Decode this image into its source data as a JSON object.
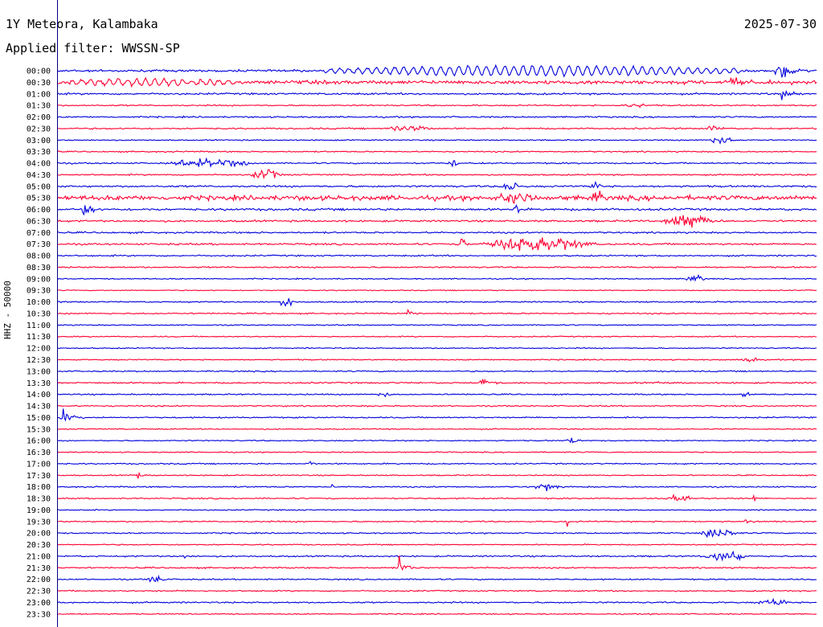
{
  "header": {
    "station": "1Y Meteora, Kalambaka",
    "date": "2025-07-30",
    "filter": "Applied filter: WWSSN-SP"
  },
  "colors": {
    "trace_a": "#0000dd",
    "trace_b": "#ff0033",
    "axis": "#000080"
  },
  "chart_data": {
    "type": "line",
    "title": "1Y Meteora, Kalambaka",
    "ylabel": "HHZ - 50000",
    "xlabel": "",
    "grid": false,
    "legend": "none",
    "trace_colors_alternate": [
      "#0000dd",
      "#ff0033"
    ],
    "row_labels": [
      "00:00",
      "00:30",
      "01:00",
      "01:30",
      "02:00",
      "02:30",
      "03:00",
      "03:30",
      "04:00",
      "04:30",
      "05:00",
      "05:30",
      "06:00",
      "06:30",
      "07:00",
      "07:30",
      "08:00",
      "08:30",
      "09:00",
      "09:30",
      "10:00",
      "10:30",
      "11:00",
      "11:30",
      "12:00",
      "12:30",
      "13:00",
      "13:30",
      "14:00",
      "14:30",
      "15:00",
      "15:30",
      "16:00",
      "16:30",
      "17:00",
      "17:30",
      "18:00",
      "18:30",
      "19:00",
      "19:30",
      "20:00",
      "20:30",
      "21:00",
      "21:30",
      "22:00",
      "22:30",
      "23:00",
      "23:30"
    ],
    "row_noise": [
      1.2,
      2.0,
      1.0,
      0.7,
      0.8,
      0.8,
      0.6,
      0.7,
      0.8,
      0.8,
      1.0,
      2.6,
      1.2,
      1.0,
      0.9,
      1.0,
      0.8,
      0.8,
      0.6,
      0.5,
      0.7,
      0.7,
      0.6,
      0.6,
      0.6,
      0.6,
      0.7,
      0.8,
      0.7,
      0.7,
      0.7,
      0.6,
      0.6,
      0.6,
      0.7,
      0.6,
      0.7,
      0.7,
      0.6,
      0.7,
      0.7,
      0.6,
      0.8,
      0.8,
      0.7,
      0.7,
      0.8,
      0.6
    ],
    "events": [
      {
        "row": 0,
        "start": 0.35,
        "dur": 0.55,
        "amp": 6,
        "kind": "swell"
      },
      {
        "row": 0,
        "start": 0.945,
        "dur": 0.055,
        "amp": 18,
        "kind": "quake"
      },
      {
        "row": 1,
        "start": 0.0,
        "dur": 0.25,
        "amp": 4,
        "kind": "swell"
      },
      {
        "row": 1,
        "start": 0.86,
        "dur": 0.06,
        "amp": 3,
        "kind": "burst"
      },
      {
        "row": 2,
        "start": 0.953,
        "dur": 0.047,
        "amp": 10,
        "kind": "quake"
      },
      {
        "row": 3,
        "start": 0.74,
        "dur": 0.04,
        "amp": 2,
        "kind": "burst"
      },
      {
        "row": 5,
        "start": 0.43,
        "dur": 0.07,
        "amp": 3,
        "kind": "burst"
      },
      {
        "row": 5,
        "start": 0.85,
        "dur": 0.03,
        "amp": 2,
        "kind": "burst"
      },
      {
        "row": 6,
        "start": 0.855,
        "dur": 0.04,
        "amp": 3,
        "kind": "burst"
      },
      {
        "row": 8,
        "start": 0.14,
        "dur": 0.12,
        "amp": 4,
        "kind": "burst"
      },
      {
        "row": 8,
        "start": 0.515,
        "dur": 0.03,
        "amp": 9,
        "kind": "quake"
      },
      {
        "row": 9,
        "start": 0.25,
        "dur": 0.05,
        "amp": 4,
        "kind": "burst"
      },
      {
        "row": 10,
        "start": 0.58,
        "dur": 0.03,
        "amp": 5,
        "kind": "burst"
      },
      {
        "row": 10,
        "start": 0.7,
        "dur": 0.02,
        "amp": 4,
        "kind": "burst"
      },
      {
        "row": 11,
        "start": 0.58,
        "dur": 0.05,
        "amp": 6,
        "kind": "burst"
      },
      {
        "row": 11,
        "start": 0.7,
        "dur": 0.02,
        "amp": 6,
        "kind": "burst"
      },
      {
        "row": 12,
        "start": 0.03,
        "dur": 0.02,
        "amp": 6,
        "kind": "burst"
      },
      {
        "row": 12,
        "start": 0.6,
        "dur": 0.01,
        "amp": 8,
        "kind": "spike"
      },
      {
        "row": 13,
        "start": 0.79,
        "dur": 0.09,
        "amp": 5,
        "kind": "burst"
      },
      {
        "row": 15,
        "start": 0.53,
        "dur": 0.015,
        "amp": 28,
        "kind": "quake"
      },
      {
        "row": 15,
        "start": 0.545,
        "dur": 0.17,
        "amp": 6,
        "kind": "burst"
      },
      {
        "row": 18,
        "start": 0.825,
        "dur": 0.03,
        "amp": 3,
        "kind": "burst"
      },
      {
        "row": 20,
        "start": 0.29,
        "dur": 0.025,
        "amp": 4,
        "kind": "burst"
      },
      {
        "row": 21,
        "start": 0.46,
        "dur": 0.03,
        "amp": 5,
        "kind": "quake"
      },
      {
        "row": 25,
        "start": 0.9,
        "dur": 0.025,
        "amp": 3,
        "kind": "burst"
      },
      {
        "row": 27,
        "start": 0.555,
        "dur": 0.04,
        "amp": 10,
        "kind": "quake"
      },
      {
        "row": 27,
        "start": 0.79,
        "dur": 0.01,
        "amp": 5,
        "kind": "quake"
      },
      {
        "row": 28,
        "start": 0.42,
        "dur": 0.02,
        "amp": 2,
        "kind": "burst"
      },
      {
        "row": 28,
        "start": 0.895,
        "dur": 0.02,
        "amp": 2,
        "kind": "burst"
      },
      {
        "row": 30,
        "start": 0.002,
        "dur": 0.05,
        "amp": 9,
        "kind": "quake"
      },
      {
        "row": 32,
        "start": 0.67,
        "dur": 0.02,
        "amp": 3,
        "kind": "burst"
      },
      {
        "row": 34,
        "start": 0.33,
        "dur": 0.03,
        "amp": 4,
        "kind": "quake"
      },
      {
        "row": 35,
        "start": 0.095,
        "dur": 0.02,
        "amp": 2,
        "kind": "burst"
      },
      {
        "row": 36,
        "start": 0.625,
        "dur": 0.04,
        "amp": 3,
        "kind": "burst"
      },
      {
        "row": 36,
        "start": 0.36,
        "dur": 0.003,
        "amp": 5,
        "kind": "spike"
      },
      {
        "row": 37,
        "start": 0.8,
        "dur": 0.04,
        "amp": 3,
        "kind": "burst"
      },
      {
        "row": 37,
        "start": 0.915,
        "dur": 0.005,
        "amp": 7,
        "kind": "spike"
      },
      {
        "row": 39,
        "start": 0.905,
        "dur": 0.025,
        "amp": 4,
        "kind": "quake"
      },
      {
        "row": 39,
        "start": 0.67,
        "dur": 0.003,
        "amp": 6,
        "kind": "spike"
      },
      {
        "row": 40,
        "start": 0.845,
        "dur": 0.06,
        "amp": 4,
        "kind": "burst"
      },
      {
        "row": 42,
        "start": 0.845,
        "dur": 0.07,
        "amp": 4,
        "kind": "burst"
      },
      {
        "row": 42,
        "start": 0.165,
        "dur": 0.005,
        "amp": 6,
        "kind": "spike"
      },
      {
        "row": 43,
        "start": 0.447,
        "dur": 0.03,
        "amp": 20,
        "kind": "quake"
      },
      {
        "row": 44,
        "start": 0.115,
        "dur": 0.03,
        "amp": 3,
        "kind": "burst"
      },
      {
        "row": 46,
        "start": 0.92,
        "dur": 0.05,
        "amp": 3,
        "kind": "burst"
      }
    ]
  }
}
